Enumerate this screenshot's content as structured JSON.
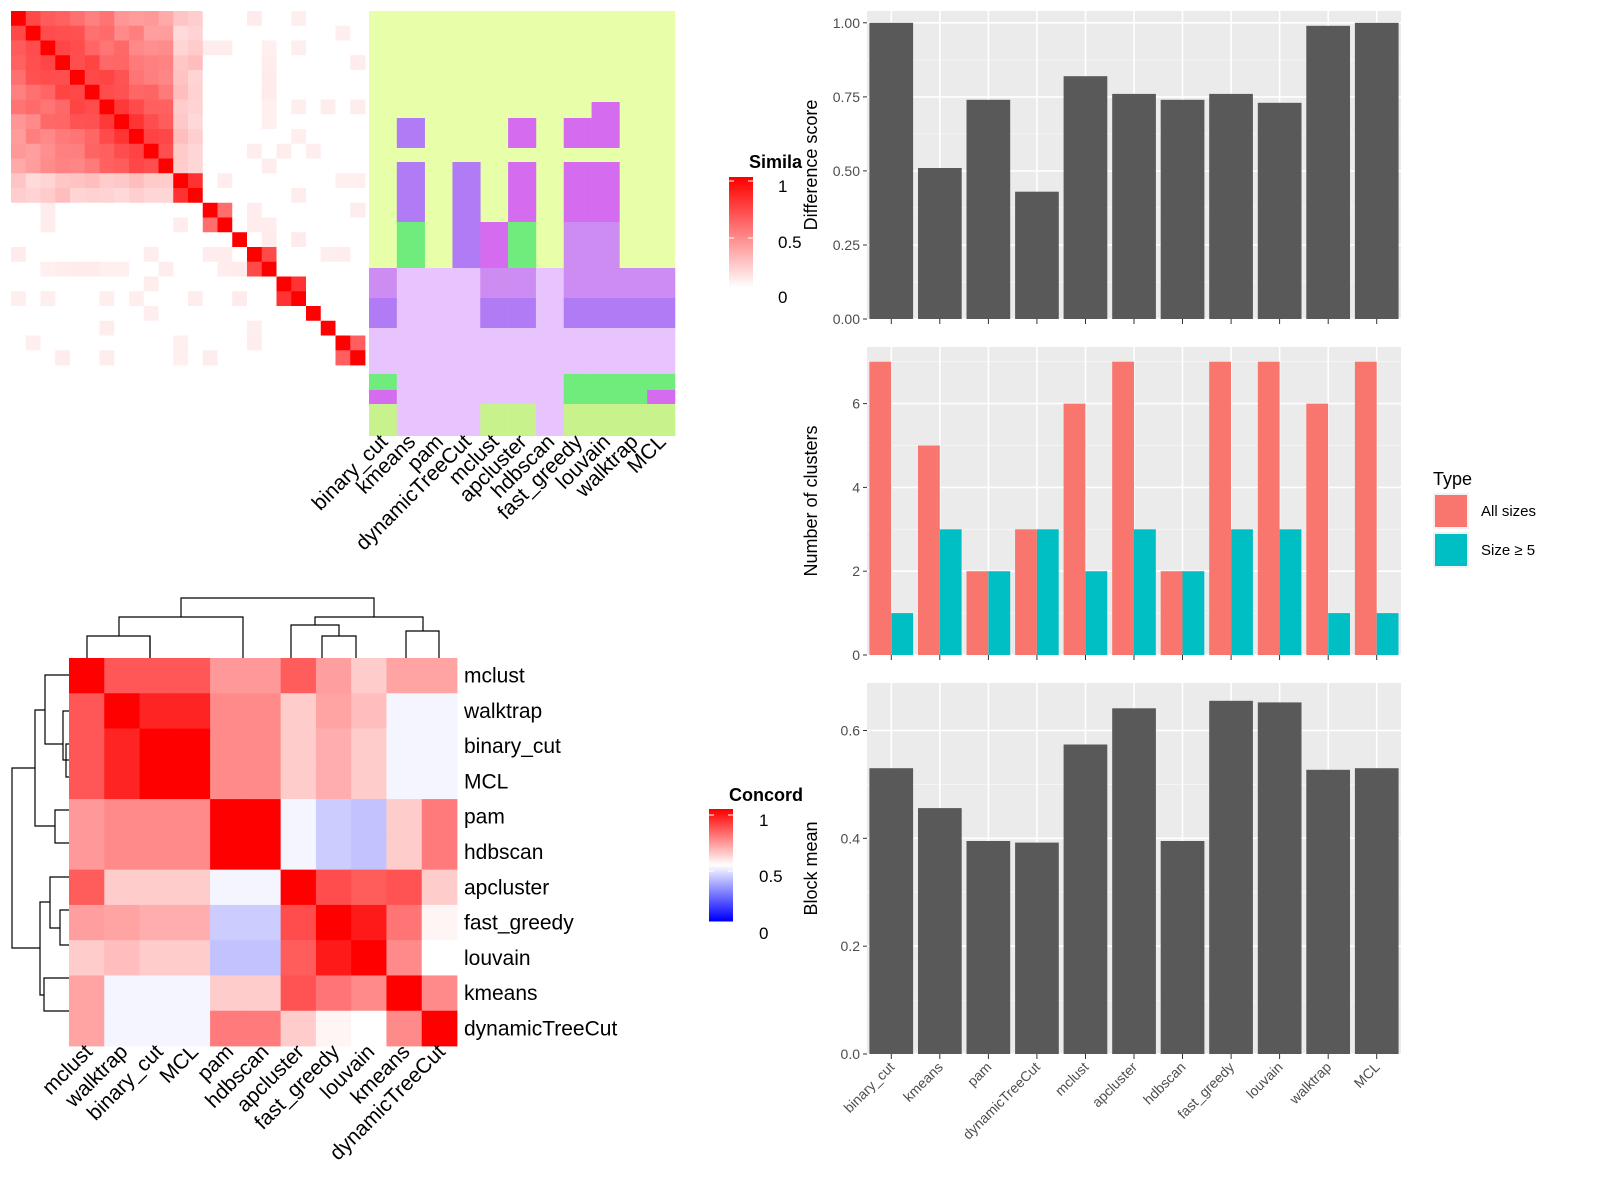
{
  "similarity_heatmap": {
    "legend_title": "Simila",
    "legend_ticks": [
      "1",
      "0.5",
      "0"
    ],
    "method_labels": [
      "binary_cut",
      "kmeans",
      "pam",
      "dynamicTreeCut",
      "mclust",
      "apcluster",
      "hdbscan",
      "fast_greedy",
      "louvain",
      "walktrap",
      "MCL"
    ],
    "colors": {
      "high": "#ff0000",
      "low": "#ffffff",
      "background": "#e6ffa8",
      "cluster_lilac": "#e8c4ff",
      "cluster_violet": "#b07bf5",
      "cluster_magenta": "#d56cf0",
      "cluster_green": "#70ec7c",
      "cluster_lightgreen": "#c8f38c",
      "cluster_mauve": "#cc8cf2"
    }
  },
  "concordance_heatmap": {
    "legend_title": "Concord",
    "legend_ticks": [
      "1",
      "0.5",
      "0"
    ],
    "row_labels": [
      "mclust",
      "walktrap",
      "binary_cut",
      "MCL",
      "pam",
      "hdbscan",
      "apcluster",
      "fast_greedy",
      "louvain",
      "kmeans",
      "dynamicTreeCut"
    ],
    "col_labels": [
      "mclust",
      "walktrap",
      "binary_cut",
      "MCL",
      "pam",
      "hdbscan",
      "apcluster",
      "fast_greedy",
      "louvain",
      "kmeans",
      "dynamicTreeCut"
    ],
    "colors": {
      "high": "#ff0000",
      "mid": "#ffffff",
      "low": "#0000ff"
    }
  },
  "chart_data": [
    {
      "type": "bar",
      "title": "",
      "xlabel": "",
      "ylabel": "Difference score",
      "categories": [
        "binary_cut",
        "kmeans",
        "pam",
        "dynamicTreeCut",
        "mclust",
        "apcluster",
        "hdbscan",
        "fast_greedy",
        "louvain",
        "walktrap",
        "MCL"
      ],
      "values": [
        1.0,
        0.51,
        0.74,
        0.43,
        0.82,
        0.76,
        0.74,
        0.76,
        0.73,
        0.99,
        1.0
      ],
      "ylim": [
        0,
        1.04
      ],
      "yticks": [
        "0.00",
        "0.25",
        "0.50",
        "0.75",
        "1.00"
      ],
      "grid": true,
      "bar_color": "#595959"
    },
    {
      "type": "bar",
      "title": "",
      "xlabel": "",
      "ylabel": "Number of clusters",
      "categories": [
        "binary_cut",
        "kmeans",
        "pam",
        "dynamicTreeCut",
        "mclust",
        "apcluster",
        "hdbscan",
        "fast_greedy",
        "louvain",
        "walktrap",
        "MCL"
      ],
      "series": [
        {
          "name": "All sizes",
          "color": "#f8766d",
          "values": [
            7,
            5,
            2,
            3,
            6,
            7,
            2,
            7,
            7,
            6,
            7
          ]
        },
        {
          "name": "Size ≥ 5",
          "color": "#00bfc4",
          "values": [
            1,
            3,
            2,
            3,
            2,
            3,
            2,
            3,
            3,
            1,
            1
          ]
        }
      ],
      "legend_title": "Type",
      "legend_position": "right",
      "ylim": [
        0,
        7.35
      ],
      "yticks": [
        "0",
        "2",
        "4",
        "6"
      ],
      "grid": true
    },
    {
      "type": "bar",
      "title": "",
      "xlabel": "",
      "ylabel": "Block mean",
      "categories": [
        "binary_cut",
        "kmeans",
        "pam",
        "dynamicTreeCut",
        "mclust",
        "apcluster",
        "hdbscan",
        "fast_greedy",
        "louvain",
        "walktrap",
        "MCL"
      ],
      "values": [
        0.53,
        0.456,
        0.395,
        0.392,
        0.574,
        0.641,
        0.395,
        0.655,
        0.652,
        0.527,
        0.53
      ],
      "ylim": [
        0,
        0.688
      ],
      "yticks": [
        "0.0",
        "0.2",
        "0.4",
        "0.6"
      ],
      "grid": true,
      "bar_color": "#595959"
    }
  ]
}
